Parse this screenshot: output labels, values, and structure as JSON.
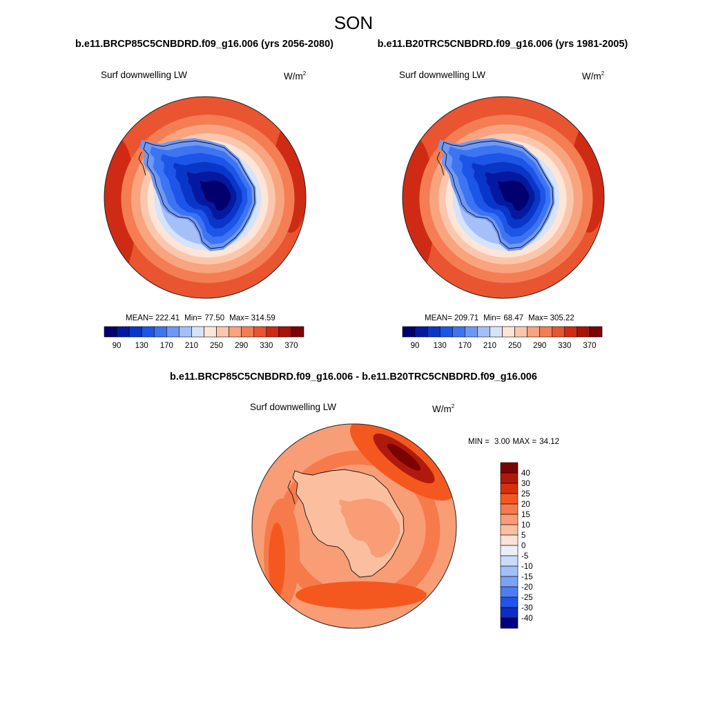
{
  "figure": {
    "season": "SON",
    "case_title": "b.e11.BRCP85C5CNBDRD.f09_g16.006 (yrs 2056-2080)",
    "control_title": "b.e11.B20TRC5CNBDRD.f09_g16.006 (yrs 1981-2005)",
    "diff_title": "b.e11.BRCP85C5CNBDRD.f09_g16.006 - b.e11.B20TRC5CNBDRD.f09_g16.006"
  },
  "chart_data": [
    {
      "type": "heatmap",
      "name": "case-panel",
      "variable_label": "Surf downwelling LW",
      "units_base": "W/m",
      "units_exp": "2",
      "stats": {
        "mean_label": "MEAN=",
        "mean": "222.41",
        "min_label": "Min=",
        "min": "77.50",
        "max_label": "Max=",
        "max": "314.59"
      },
      "colorbar": {
        "levels": [
          90,
          110,
          130,
          150,
          170,
          190,
          210,
          230,
          250,
          270,
          290,
          310,
          330,
          350,
          370
        ],
        "tick_labels": [
          "90",
          "130",
          "170",
          "210",
          "250",
          "290",
          "330",
          "370"
        ],
        "colors": [
          "#02006e",
          "#0519a0",
          "#0a36c8",
          "#1c55e8",
          "#3d74f2",
          "#6f98f6",
          "#a5bff8",
          "#d5e3fb",
          "#fde5d8",
          "#fbc7ac",
          "#f8a47e",
          "#f47d54",
          "#e85530",
          "#cf2b14",
          "#a9130a",
          "#7c0303"
        ]
      }
    },
    {
      "type": "heatmap",
      "name": "control-panel",
      "variable_label": "Surf downwelling LW",
      "units_base": "W/m",
      "units_exp": "2",
      "stats": {
        "mean_label": "MEAN=",
        "mean": "209.71",
        "min_label": "Min=",
        "min": "68.47",
        "max_label": "Max=",
        "max": "305.22"
      },
      "colorbar": {
        "levels": [
          90,
          110,
          130,
          150,
          170,
          190,
          210,
          230,
          250,
          270,
          290,
          310,
          330,
          350,
          370
        ],
        "tick_labels": [
          "90",
          "130",
          "170",
          "210",
          "250",
          "290",
          "330",
          "370"
        ],
        "colors": [
          "#02006e",
          "#0519a0",
          "#0a36c8",
          "#1c55e8",
          "#3d74f2",
          "#6f98f6",
          "#a5bff8",
          "#d5e3fb",
          "#fde5d8",
          "#fbc7ac",
          "#f8a47e",
          "#f47d54",
          "#e85530",
          "#cf2b14",
          "#a9130a",
          "#7c0303"
        ]
      }
    },
    {
      "type": "heatmap",
      "name": "difference-panel",
      "variable_label": "Surf downwelling LW",
      "units_base": "W/m",
      "units_exp": "2",
      "stats": {
        "min_label": "MIN =",
        "min": "3.00",
        "max_label": "MAX =",
        "max": "34.12"
      },
      "colorbar": {
        "levels": [
          -40,
          -30,
          -25,
          -20,
          -15,
          -10,
          -5,
          0,
          5,
          10,
          15,
          20,
          25,
          30,
          40
        ],
        "tick_labels": [
          "40",
          "30",
          "25",
          "20",
          "15",
          "10",
          "5",
          "0",
          "-5",
          "-10",
          "-15",
          "-20",
          "-25",
          "-30",
          "-40"
        ],
        "colors": [
          "#7c0303",
          "#b01a0c",
          "#d8300f",
          "#f4581f",
          "#f67a4a",
          "#f89d76",
          "#fbbfa0",
          "#fde3d3",
          "#e9f0fb",
          "#c9dafa",
          "#a1bff8",
          "#7aa3f5",
          "#4d7df2",
          "#2353ea",
          "#0b2fc0",
          "#02007e"
        ]
      }
    }
  ]
}
